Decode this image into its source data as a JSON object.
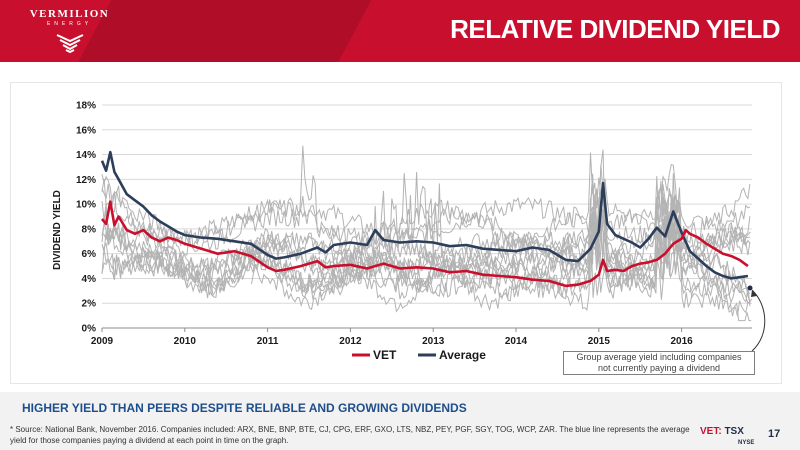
{
  "header": {
    "brand": "VERMILION",
    "brand_sub": "ENERGY",
    "title": "RELATIVE DIVIDEND YIELD"
  },
  "colors": {
    "brand_red": "#c8102e",
    "vet_line": "#c8102e",
    "average_line": "#2c3e5a",
    "peer_lines": "#b3b3b3",
    "tagline_blue": "#1f4e8c"
  },
  "chart_data": {
    "type": "line",
    "ylabel": "DIVIDEND YIELD",
    "xlabel": "",
    "ylim": [
      0,
      18
    ],
    "xlim": [
      2009.0,
      2016.85
    ],
    "y_ticks": [
      "0%",
      "2%",
      "4%",
      "6%",
      "8%",
      "10%",
      "12%",
      "14%",
      "16%",
      "18%"
    ],
    "x_ticks": [
      "2009",
      "2010",
      "2011",
      "2012",
      "2013",
      "2014",
      "2015",
      "2016"
    ],
    "grid": true,
    "legend_position": "bottom",
    "series": [
      {
        "name": "VET",
        "color": "#c8102e",
        "x": [
          2009.0,
          2009.05,
          2009.1,
          2009.15,
          2009.2,
          2009.3,
          2009.4,
          2009.5,
          2009.6,
          2009.7,
          2009.8,
          2009.9,
          2010.0,
          2010.2,
          2010.4,
          2010.6,
          2010.8,
          2011.0,
          2011.1,
          2011.2,
          2011.4,
          2011.6,
          2011.7,
          2011.8,
          2012.0,
          2012.2,
          2012.4,
          2012.6,
          2012.8,
          2013.0,
          2013.2,
          2013.4,
          2013.6,
          2013.8,
          2014.0,
          2014.2,
          2014.4,
          2014.6,
          2014.75,
          2014.9,
          2015.0,
          2015.05,
          2015.1,
          2015.2,
          2015.3,
          2015.4,
          2015.5,
          2015.6,
          2015.7,
          2015.8,
          2015.9,
          2016.0,
          2016.05,
          2016.1,
          2016.2,
          2016.3,
          2016.4,
          2016.5,
          2016.6,
          2016.7,
          2016.8
        ],
        "values": [
          8.8,
          8.4,
          10.2,
          8.3,
          9.0,
          7.9,
          7.6,
          7.9,
          7.3,
          7.0,
          7.3,
          7.1,
          6.8,
          6.4,
          6.0,
          6.2,
          5.8,
          4.9,
          4.6,
          4.7,
          5.0,
          5.4,
          4.9,
          5.0,
          5.1,
          4.8,
          5.2,
          4.8,
          4.9,
          4.8,
          4.5,
          4.6,
          4.3,
          4.2,
          4.1,
          3.9,
          3.8,
          3.4,
          3.5,
          3.8,
          4.3,
          5.5,
          4.6,
          4.7,
          4.6,
          5.0,
          5.2,
          5.3,
          5.5,
          6.0,
          6.8,
          7.2,
          7.9,
          7.6,
          7.3,
          6.8,
          6.4,
          6.0,
          5.8,
          5.5,
          5.0
        ]
      },
      {
        "name": "Average",
        "color": "#2c3e5a",
        "x": [
          2009.0,
          2009.05,
          2009.1,
          2009.15,
          2009.2,
          2009.3,
          2009.4,
          2009.5,
          2009.6,
          2009.7,
          2009.8,
          2009.9,
          2010.0,
          2010.2,
          2010.4,
          2010.6,
          2010.8,
          2011.0,
          2011.1,
          2011.2,
          2011.4,
          2011.6,
          2011.7,
          2011.8,
          2012.0,
          2012.2,
          2012.3,
          2012.4,
          2012.6,
          2012.8,
          2013.0,
          2013.2,
          2013.4,
          2013.6,
          2013.8,
          2014.0,
          2014.2,
          2014.4,
          2014.6,
          2014.75,
          2014.9,
          2015.0,
          2015.05,
          2015.1,
          2015.2,
          2015.3,
          2015.4,
          2015.5,
          2015.6,
          2015.7,
          2015.8,
          2015.9,
          2016.0,
          2016.1,
          2016.2,
          2016.3,
          2016.4,
          2016.5,
          2016.6,
          2016.7,
          2016.8
        ],
        "values": [
          13.5,
          12.7,
          14.2,
          12.6,
          12.0,
          10.8,
          10.3,
          9.8,
          9.1,
          8.6,
          8.2,
          7.8,
          7.5,
          7.3,
          7.2,
          7.0,
          6.8,
          5.9,
          5.6,
          5.7,
          6.0,
          6.5,
          6.1,
          6.7,
          6.9,
          6.7,
          7.9,
          7.1,
          6.9,
          7.0,
          6.9,
          6.6,
          6.7,
          6.4,
          6.3,
          6.2,
          6.5,
          6.3,
          5.5,
          5.4,
          6.4,
          7.8,
          11.7,
          8.4,
          7.5,
          7.2,
          6.9,
          6.5,
          7.2,
          8.1,
          7.4,
          9.4,
          7.7,
          6.2,
          5.6,
          5.0,
          4.5,
          4.2,
          4.0,
          4.1,
          4.2
        ]
      }
    ],
    "legend": [
      "VET",
      "Average"
    ],
    "annotation": "Group average yield including companies not currently paying a dividend"
  },
  "callout": {
    "line1": "Group average yield including companies",
    "line2": "not currently paying a dividend"
  },
  "footer": {
    "tagline": "HIGHER YIELD THAN PEERS DESPITE RELIABLE AND GROWING DIVIDENDS",
    "footnote": "* Source: National Bank, November 2016.  Companies included: ARX, BNE, BNP, BTE, CJ, CPG, ERF, GXO, LTS, NBZ, PEY, PGF, SGY, TOG, WCP, ZAR. The blue line represents the average yield for those companies paying a dividend at each point in time on the graph.",
    "ticker_vet": "VET:",
    "ticker_tsx": "TSX",
    "ticker_nyse": "NYSE",
    "page_number": "17"
  }
}
